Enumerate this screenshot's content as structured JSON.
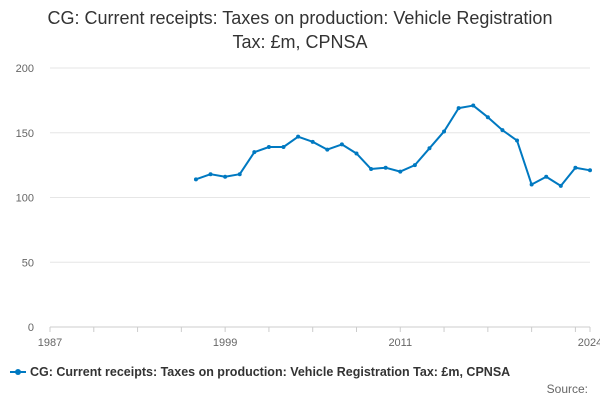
{
  "chart_data": {
    "type": "line",
    "title": "CG: Current receipts: Taxes on production: Vehicle Registration Tax: £m, CPNSA",
    "xlabel": "",
    "ylabel": "",
    "xlim": [
      1987,
      2024
    ],
    "ylim": [
      0,
      200
    ],
    "x_ticks": [
      "1987",
      "1999",
      "2011",
      "2024"
    ],
    "y_ticks": [
      0,
      50,
      100,
      150,
      200
    ],
    "grid": true,
    "series": [
      {
        "name": "CG: Current receipts: Taxes on production: Vehicle Registration Tax: £m, CPNSA",
        "color": "#0079c1",
        "x": [
          1997,
          1998,
          1999,
          2000,
          2001,
          2002,
          2003,
          2004,
          2005,
          2006,
          2007,
          2008,
          2009,
          2010,
          2011,
          2012,
          2013,
          2014,
          2015,
          2016,
          2017,
          2018,
          2019,
          2020,
          2021,
          2022,
          2023,
          2024
        ],
        "values": [
          114,
          118,
          116,
          118,
          135,
          139,
          139,
          147,
          143,
          137,
          141,
          134,
          122,
          123,
          120,
          125,
          138,
          151,
          169,
          171,
          162,
          152,
          144,
          110,
          116,
          109,
          123,
          121
        ]
      }
    ],
    "legend_position": "bottom-left"
  },
  "footer": {
    "source_label": "Source:"
  }
}
